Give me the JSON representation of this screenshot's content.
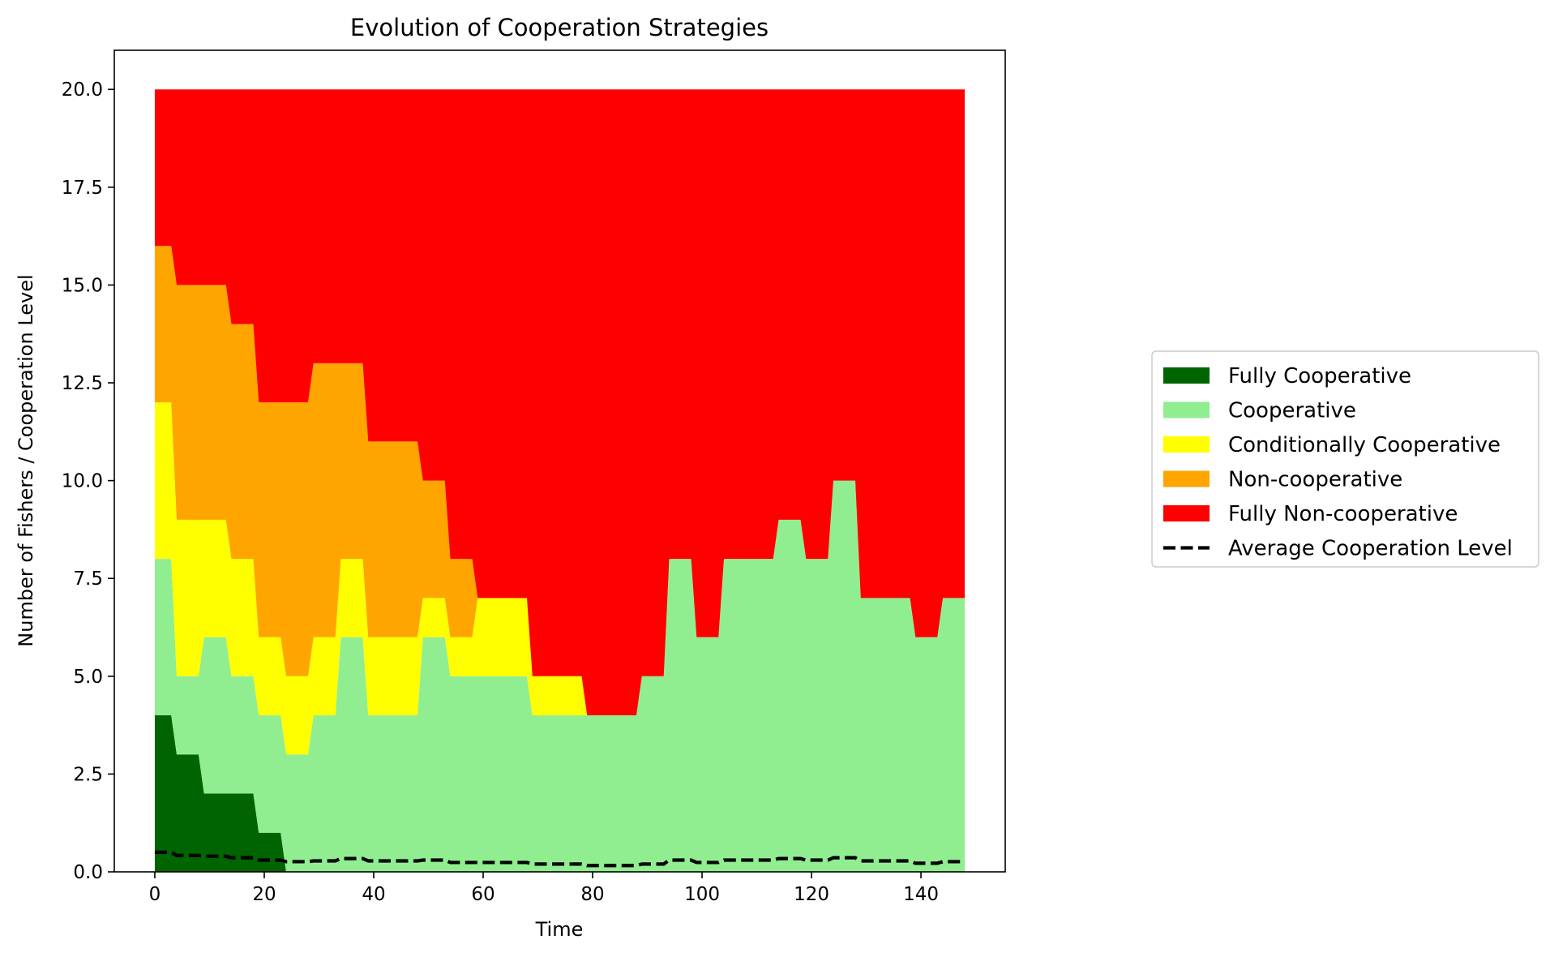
{
  "chart_data": {
    "type": "area",
    "title": "Evolution of Cooperation Strategies",
    "xlabel": "Time",
    "ylabel": "Number of Fishers / Cooperation Level",
    "xlim": [
      -7.4,
      155.4
    ],
    "ylim": [
      0,
      21
    ],
    "xticks": [
      0,
      20,
      40,
      60,
      80,
      100,
      120,
      140
    ],
    "yticks": [
      0.0,
      2.5,
      5.0,
      7.5,
      10.0,
      12.5,
      15.0,
      17.5,
      20.0
    ],
    "ytick_labels": [
      "0.0",
      "2.5",
      "5.0",
      "7.5",
      "10.0",
      "12.5",
      "15.0",
      "17.5",
      "20.0"
    ],
    "grid": false,
    "legend_position": "right",
    "x": [
      0,
      3,
      4,
      8,
      9,
      13,
      14,
      18,
      19,
      23,
      24,
      28,
      29,
      33,
      34,
      38,
      39,
      48,
      49,
      53,
      54,
      58,
      59,
      68,
      69,
      78,
      79,
      88,
      89,
      93,
      94,
      98,
      99,
      103,
      104,
      113,
      114,
      118,
      119,
      123,
      124,
      128,
      129,
      138,
      139,
      143,
      144,
      148
    ],
    "series": [
      {
        "name": "Fully Cooperative",
        "color": "#006400",
        "values": [
          4,
          4,
          3,
          3,
          2,
          2,
          2,
          2,
          1,
          1,
          0,
          0,
          0,
          0,
          0,
          0,
          0,
          0,
          0,
          0,
          0,
          0,
          0,
          0,
          0,
          0,
          0,
          0,
          0,
          0,
          0,
          0,
          0,
          0,
          0,
          0,
          0,
          0,
          0,
          0,
          0,
          0,
          0,
          0,
          0,
          0,
          0,
          0
        ]
      },
      {
        "name": "Cooperative",
        "color": "#90ee90",
        "values": [
          4,
          4,
          2,
          2,
          4,
          4,
          3,
          3,
          3,
          3,
          3,
          3,
          4,
          4,
          6,
          6,
          4,
          4,
          6,
          6,
          5,
          5,
          5,
          5,
          4,
          4,
          4,
          4,
          5,
          5,
          8,
          8,
          6,
          6,
          8,
          8,
          9,
          9,
          8,
          8,
          10,
          10,
          7,
          7,
          6,
          6,
          7,
          7
        ]
      },
      {
        "name": "Conditionally Cooperative",
        "color": "#ffff00",
        "values": [
          4,
          4,
          4,
          4,
          3,
          3,
          3,
          3,
          2,
          2,
          2,
          2,
          2,
          2,
          2,
          2,
          2,
          2,
          1,
          1,
          1,
          1,
          2,
          2,
          1,
          1,
          0,
          0,
          0,
          0,
          0,
          0,
          0,
          0,
          0,
          0,
          0,
          0,
          0,
          0,
          0,
          0,
          0,
          0,
          0,
          0,
          0,
          0
        ]
      },
      {
        "name": "Non-cooperative",
        "color": "#ffa500",
        "values": [
          4,
          4,
          6,
          6,
          6,
          6,
          6,
          6,
          6,
          6,
          7,
          7,
          7,
          7,
          5,
          5,
          5,
          5,
          3,
          3,
          2,
          2,
          0,
          0,
          0,
          0,
          0,
          0,
          0,
          0,
          0,
          0,
          0,
          0,
          0,
          0,
          0,
          0,
          0,
          0,
          0,
          0,
          0,
          0,
          0,
          0,
          0,
          0
        ]
      },
      {
        "name": "Fully Non-cooperative",
        "color": "#ff0000",
        "values": [
          4,
          4,
          5,
          5,
          5,
          5,
          6,
          6,
          8,
          8,
          8,
          8,
          7,
          7,
          7,
          7,
          9,
          9,
          10,
          10,
          12,
          12,
          13,
          13,
          15,
          15,
          16,
          16,
          15,
          15,
          12,
          12,
          14,
          14,
          12,
          12,
          11,
          11,
          12,
          12,
          10,
          10,
          13,
          13,
          14,
          14,
          13,
          13
        ]
      }
    ],
    "line_series": {
      "name": "Average Cooperation Level",
      "color": "#000000",
      "style": "dashed",
      "values": [
        0.5,
        0.5,
        0.42,
        0.42,
        0.4,
        0.4,
        0.36,
        0.36,
        0.3,
        0.3,
        0.26,
        0.26,
        0.28,
        0.28,
        0.34,
        0.34,
        0.28,
        0.28,
        0.3,
        0.3,
        0.24,
        0.24,
        0.24,
        0.24,
        0.2,
        0.2,
        0.16,
        0.16,
        0.2,
        0.2,
        0.3,
        0.3,
        0.24,
        0.24,
        0.3,
        0.3,
        0.34,
        0.34,
        0.3,
        0.3,
        0.36,
        0.36,
        0.28,
        0.28,
        0.22,
        0.22,
        0.26,
        0.26
      ]
    }
  }
}
